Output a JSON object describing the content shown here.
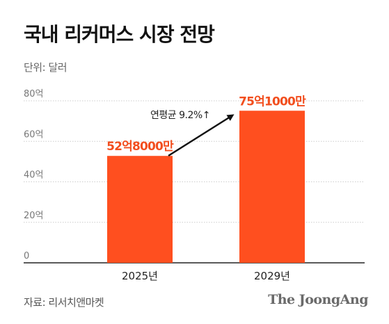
{
  "header": {
    "title": "국내 리커머스 시장 전망",
    "unit": "단위: 달러"
  },
  "footer": {
    "source": "자료: 리서치앤마켓",
    "brand": "The JoongAng"
  },
  "colors": {
    "bar": "#ff4f1f",
    "label": "#f24e1e",
    "grid": "#cccccc",
    "axis": "#222222"
  },
  "annotation": {
    "text": "연평균 9.2%↑"
  },
  "chart_data": {
    "type": "bar",
    "categories": [
      "2025년",
      "2029년"
    ],
    "values": [
      52.8,
      75.1
    ],
    "data_labels": [
      "52억8000만",
      "75억1000만"
    ],
    "yticks": [
      0,
      20,
      40,
      60,
      80
    ],
    "ytick_labels": [
      "0",
      "20억",
      "40억",
      "60억",
      "80억"
    ],
    "ylim": [
      0,
      80
    ],
    "grid": true
  }
}
